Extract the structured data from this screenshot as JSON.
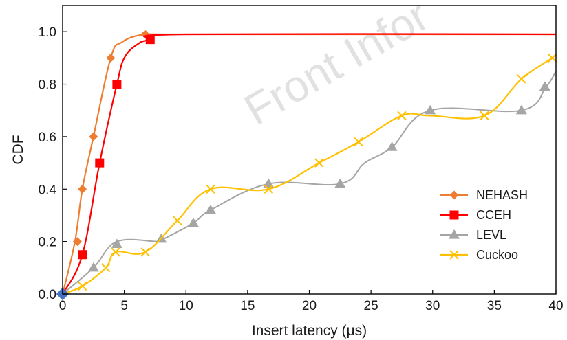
{
  "watermark": "Front Infor",
  "chart_data": {
    "type": "line",
    "title": "",
    "xlabel": "Insert latency (μs)",
    "ylabel": "CDF",
    "xlim": [
      0,
      40
    ],
    "ylim": [
      0,
      1.1
    ],
    "xticks": [
      0,
      5,
      10,
      15,
      20,
      25,
      30,
      35,
      40
    ],
    "yticks": [
      0.0,
      0.2,
      0.4,
      0.6,
      0.8,
      1.0
    ],
    "xtick_labels": [
      "0",
      "5",
      "10",
      "15",
      "20",
      "25",
      "30",
      "35",
      "40"
    ],
    "ytick_labels": [
      "0.0",
      "0.2",
      "0.4",
      "0.6",
      "0.8",
      "1.0"
    ],
    "grid": false,
    "legend_position": "bottom-right",
    "series": [
      {
        "name": "NEHASH",
        "color": "#ED7D31",
        "marker": "diamond",
        "line": [
          [
            0,
            0
          ],
          [
            1,
            0.2
          ],
          [
            1.6,
            0.4
          ],
          [
            2.5,
            0.6
          ],
          [
            3.9,
            0.9
          ],
          [
            4.8,
            0.96
          ],
          [
            6.7,
            0.99
          ],
          [
            10,
            0.99
          ],
          [
            40,
            0.99
          ]
        ],
        "points": [
          [
            1.2,
            0.2
          ],
          [
            1.6,
            0.4
          ],
          [
            2.5,
            0.6
          ],
          [
            3.9,
            0.9
          ],
          [
            6.7,
            0.99
          ]
        ]
      },
      {
        "name": "CCEH",
        "color": "#FF0000",
        "marker": "square",
        "line": [
          [
            0,
            0
          ],
          [
            1.6,
            0.15
          ],
          [
            3,
            0.5
          ],
          [
            4.4,
            0.8
          ],
          [
            5,
            0.9
          ],
          [
            6,
            0.95
          ],
          [
            7.1,
            0.97
          ],
          [
            10,
            0.99
          ],
          [
            40,
            0.99
          ]
        ],
        "points": [
          [
            1.6,
            0.15
          ],
          [
            3,
            0.5
          ],
          [
            4.4,
            0.8
          ],
          [
            7.1,
            0.97
          ]
        ]
      },
      {
        "name": "LEVL",
        "color": "#A5A5A5",
        "marker": "triangle",
        "line": [
          [
            0,
            0
          ],
          [
            2.5,
            0.1
          ],
          [
            4.4,
            0.2
          ],
          [
            7.8,
            0.2
          ],
          [
            8.2,
            0.21
          ],
          [
            10.6,
            0.27
          ],
          [
            12,
            0.32
          ],
          [
            16.7,
            0.42
          ],
          [
            22.5,
            0.42
          ],
          [
            24.5,
            0.5
          ],
          [
            26.7,
            0.56
          ],
          [
            29.8,
            0.7
          ],
          [
            37.2,
            0.7
          ],
          [
            39.2,
            0.79
          ],
          [
            40,
            0.85
          ]
        ],
        "points": [
          [
            2.5,
            0.1
          ],
          [
            4.4,
            0.19
          ],
          [
            8,
            0.21
          ],
          [
            10.6,
            0.27
          ],
          [
            12,
            0.32
          ],
          [
            16.7,
            0.42
          ],
          [
            22.5,
            0.42
          ],
          [
            26.7,
            0.56
          ],
          [
            29.8,
            0.7
          ],
          [
            37.2,
            0.7
          ],
          [
            39.1,
            0.79
          ]
        ]
      },
      {
        "name": "Cuckoo",
        "color": "#FFC000",
        "marker": "x",
        "line": [
          [
            0,
            0
          ],
          [
            1.6,
            0.03
          ],
          [
            3.5,
            0.1
          ],
          [
            4.3,
            0.16
          ],
          [
            6.7,
            0.16
          ],
          [
            9.3,
            0.28
          ],
          [
            12,
            0.4
          ],
          [
            16.7,
            0.4
          ],
          [
            20.8,
            0.5
          ],
          [
            24,
            0.58
          ],
          [
            27.5,
            0.68
          ],
          [
            29.8,
            0.68
          ],
          [
            34.2,
            0.68
          ],
          [
            37.2,
            0.82
          ],
          [
            39.7,
            0.9
          ]
        ],
        "points": [
          [
            1.6,
            0.03
          ],
          [
            3.5,
            0.1
          ],
          [
            4.3,
            0.16
          ],
          [
            6.7,
            0.16
          ],
          [
            9.3,
            0.28
          ],
          [
            12,
            0.4
          ],
          [
            16.7,
            0.4
          ],
          [
            20.8,
            0.5
          ],
          [
            24,
            0.58
          ],
          [
            27.5,
            0.68
          ],
          [
            34.2,
            0.68
          ],
          [
            37.2,
            0.82
          ],
          [
            39.7,
            0.9
          ]
        ]
      }
    ]
  }
}
